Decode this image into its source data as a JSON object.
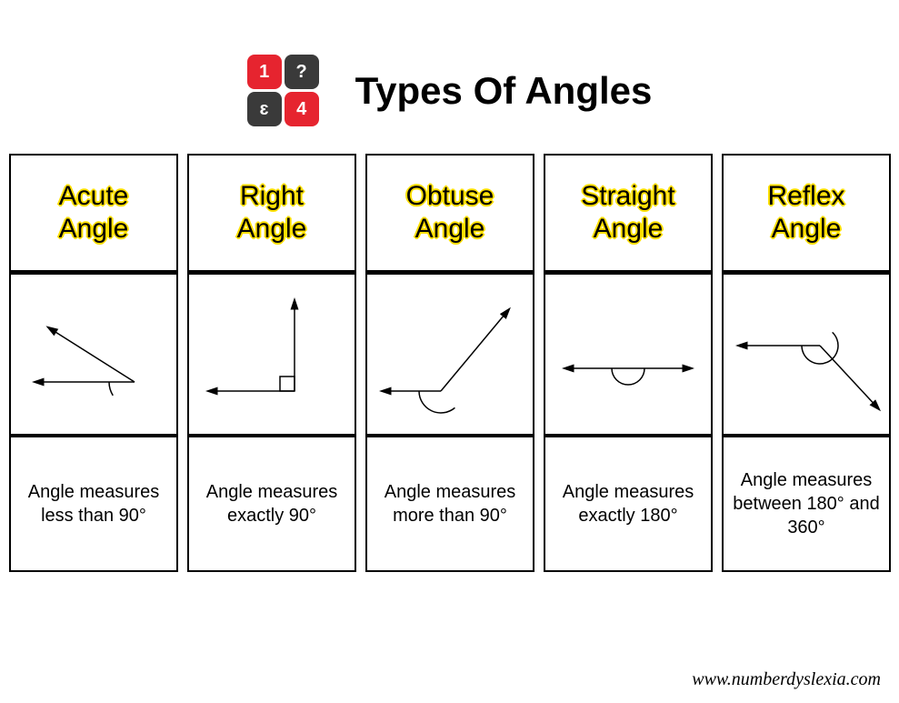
{
  "page": {
    "title": "Types Of Angles",
    "footer": "www.numberdyslexia.com",
    "background_color": "#ffffff",
    "border_color": "#000000",
    "title_fontsize": 42,
    "title_outline_color": "#ffe000",
    "cell_title_fontsize": 30,
    "cell_desc_fontsize": 20
  },
  "logo": {
    "cells": [
      {
        "text": "1",
        "bg": "#e6242f",
        "fg": "#ffffff"
      },
      {
        "text": "?",
        "bg": "#3a3a3a",
        "fg": "#ffffff"
      },
      {
        "text": "ɛ",
        "bg": "#3a3a3a",
        "fg": "#ffffff"
      },
      {
        "text": "4",
        "bg": "#e6242f",
        "fg": "#ffffff"
      }
    ]
  },
  "columns": [
    {
      "title_line1": "Acute",
      "title_line2": "Angle",
      "description": "Angle measures less than 90°",
      "diagram": {
        "type": "angle",
        "vertex": [
          130,
          110
        ],
        "ray1_end": [
          20,
          110
        ],
        "ray2_end": [
          35,
          50
        ],
        "arc_radius": 28,
        "arc_start_deg": 180,
        "arc_end_deg": 212,
        "stroke": "#000000",
        "stroke_width": 1.5
      }
    },
    {
      "title_line1": "Right",
      "title_line2": "Angle",
      "description": "Angle measures exactly 90°",
      "diagram": {
        "type": "right-angle",
        "vertex": [
          110,
          120
        ],
        "ray1_end": [
          15,
          120
        ],
        "ray2_end": [
          110,
          20
        ],
        "square_size": 16,
        "stroke": "#000000",
        "stroke_width": 1.5
      }
    },
    {
      "title_line1": "Obtuse",
      "title_line2": "Angle",
      "description": "Angle measures more than 90°",
      "diagram": {
        "type": "angle",
        "vertex": [
          75,
          120
        ],
        "ray1_end": [
          10,
          120
        ],
        "ray2_end": [
          150,
          30
        ],
        "arc_radius": 24,
        "arc_start_deg": 180,
        "arc_end_deg": 310,
        "stroke": "#000000",
        "stroke_width": 1.5
      }
    },
    {
      "title_line1": "Straight",
      "title_line2": "Angle",
      "description": "Angle measures exactly 180°",
      "diagram": {
        "type": "angle",
        "vertex": [
          85,
          95
        ],
        "ray1_end": [
          15,
          95
        ],
        "ray2_end": [
          155,
          95
        ],
        "arc_radius": 18,
        "arc_start_deg": 180,
        "arc_end_deg": 360,
        "stroke": "#000000",
        "stroke_width": 1.5
      }
    },
    {
      "title_line1": "Reflex",
      "title_line2": "Angle",
      "description": "Angle measures between 180° and 360°",
      "diagram": {
        "type": "angle",
        "vertex": [
          100,
          70
        ],
        "ray1_end": [
          10,
          70
        ],
        "ray2_end": [
          165,
          140
        ],
        "arc_radius": 20,
        "arc_start_deg": 180,
        "arc_end_deg": 407,
        "stroke": "#000000",
        "stroke_width": 1.5
      }
    }
  ]
}
